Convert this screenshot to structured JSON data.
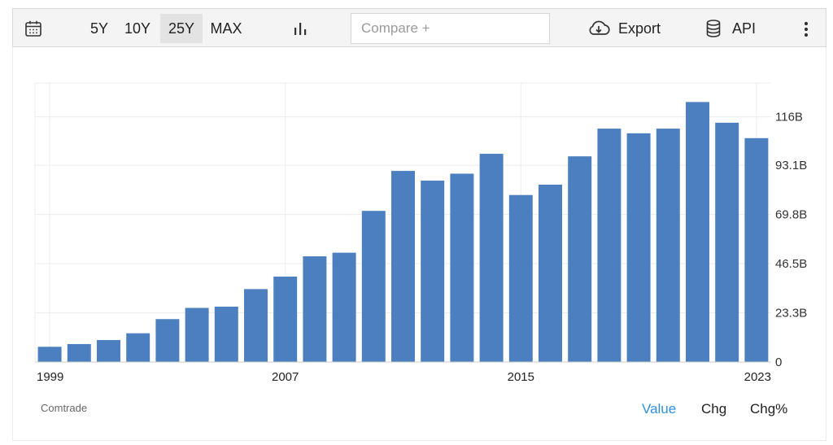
{
  "toolbar": {
    "ranges": [
      "5Y",
      "10Y",
      "25Y",
      "MAX"
    ],
    "active_range": "25Y",
    "compare_placeholder": "Compare +",
    "export_label": "Export",
    "api_label": "API",
    "icons": [
      "calendar-icon",
      "bar-chart-icon",
      "cloud-download-icon",
      "database-icon",
      "more-vertical-icon"
    ]
  },
  "chart_data": {
    "type": "bar",
    "title": "",
    "xlabel": "",
    "ylabel": "",
    "x": [
      1999,
      2000,
      2001,
      2002,
      2003,
      2004,
      2005,
      2006,
      2007,
      2008,
      2009,
      2010,
      2011,
      2012,
      2013,
      2014,
      2015,
      2016,
      2017,
      2018,
      2019,
      2020,
      2021,
      2022,
      2023
    ],
    "values": [
      7.2,
      8.5,
      10.4,
      13.6,
      20.3,
      25.6,
      26.2,
      34.5,
      40.4,
      50.0,
      51.7,
      71.5,
      90.4,
      85.8,
      89.1,
      98.5,
      79.0,
      83.9,
      97.3,
      110.4,
      108.2,
      110.4,
      123.0,
      113.2,
      105.9
    ],
    "x_tick_labels": [
      "1999",
      "2007",
      "2015",
      "2023"
    ],
    "y_tick_values": [
      0,
      23.3,
      46.5,
      69.8,
      93.1,
      116
    ],
    "y_tick_labels": [
      "0",
      "23.3B",
      "46.5B",
      "69.8B",
      "93.1B",
      "116B"
    ],
    "ylim": [
      0,
      132
    ],
    "y_axis_position": "right",
    "grid": true,
    "bar_color": "#4b7fbf",
    "grid_color": "#ececec"
  },
  "footer": {
    "source": "Comtrade",
    "view_tabs": [
      "Value",
      "Chg",
      "Chg%"
    ],
    "active_view": "Value",
    "active_color": "#2f8fdd"
  }
}
